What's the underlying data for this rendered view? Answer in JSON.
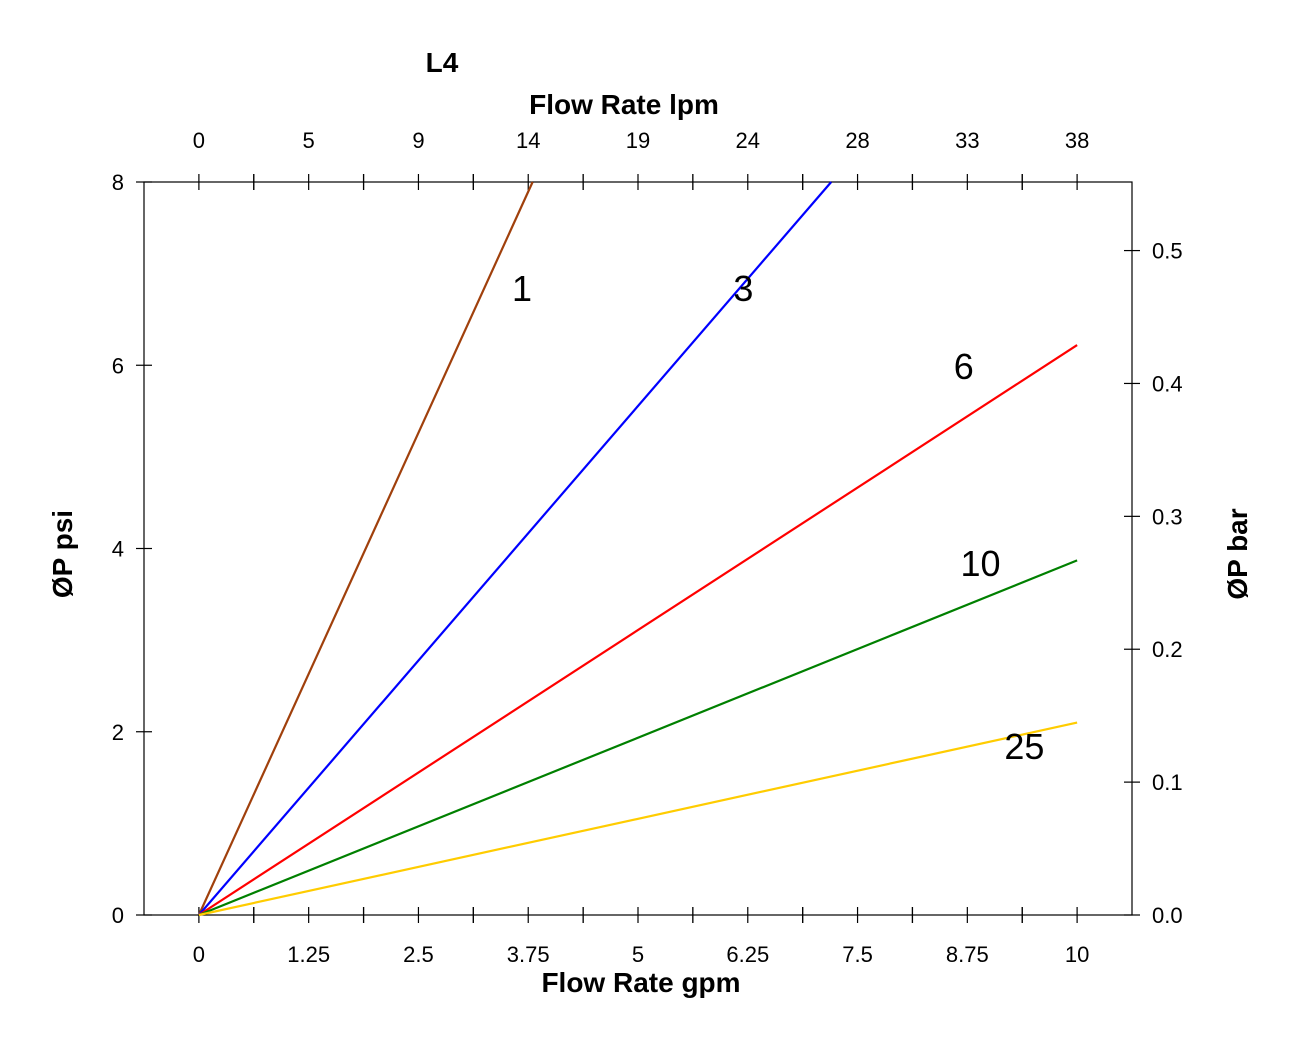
{
  "chart_data": {
    "type": "line",
    "title": "L4",
    "xlabel_bottom": "Flow Rate gpm",
    "xlabel_top": "Flow Rate lpm",
    "ylabel_left": "ØP psi",
    "ylabel_right": "ØP bar",
    "xlim": [
      -0.625,
      10.625
    ],
    "ylim_left": [
      0,
      8
    ],
    "ylim_right": [
      0,
      0.5516
    ],
    "x_ticks_bottom": [
      "0",
      "1.25",
      "2.5",
      "3.75",
      "5",
      "6.25",
      "7.5",
      "8.75",
      "10"
    ],
    "x_ticks_top": [
      "0",
      "5",
      "9",
      "14",
      "19",
      "24",
      "28",
      "33",
      "38"
    ],
    "y_ticks_left": [
      "0",
      "2",
      "4",
      "6",
      "8"
    ],
    "y_ticks_right": [
      "0.0",
      "0.1",
      "0.2",
      "0.3",
      "0.4",
      "0.5"
    ],
    "grid": false,
    "series": [
      {
        "name": "1",
        "color": "#A0400C",
        "x": [
          0,
          3.8
        ],
        "y": [
          0,
          8
        ]
      },
      {
        "name": "3",
        "color": "#0000FF",
        "x": [
          0,
          7.2
        ],
        "y": [
          0,
          8
        ]
      },
      {
        "name": "6",
        "color": "#FF0000",
        "x": [
          0,
          10
        ],
        "y": [
          0,
          6.22
        ]
      },
      {
        "name": "10",
        "color": "#008000",
        "x": [
          0,
          10
        ],
        "y": [
          0,
          3.87
        ]
      },
      {
        "name": "25",
        "color": "#FFCC00",
        "x": [
          0,
          10
        ],
        "y": [
          0,
          2.1
        ]
      }
    ],
    "annotations": [
      {
        "text": "1",
        "x": 3.68,
        "y": 6.7
      },
      {
        "text": "3",
        "x": 6.2,
        "y": 6.7
      },
      {
        "text": "6",
        "x": 8.71,
        "y": 5.85
      },
      {
        "text": "10",
        "x": 8.9,
        "y": 3.7
      },
      {
        "text": "25",
        "x": 9.4,
        "y": 1.7
      }
    ]
  }
}
